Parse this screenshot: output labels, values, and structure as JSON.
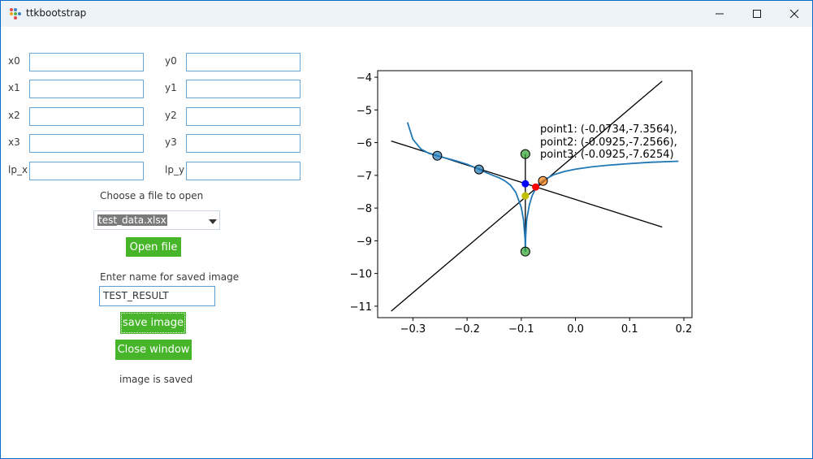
{
  "window": {
    "title": "ttkbootstrap",
    "controls": [
      "minimize",
      "maximize",
      "close"
    ]
  },
  "form": {
    "fields": [
      {
        "label": "x0",
        "value": ""
      },
      {
        "label": "y0",
        "value": ""
      },
      {
        "label": "x1",
        "value": ""
      },
      {
        "label": "y1",
        "value": ""
      },
      {
        "label": "x2",
        "value": ""
      },
      {
        "label": "y2",
        "value": ""
      },
      {
        "label": "x3",
        "value": ""
      },
      {
        "label": "y3",
        "value": ""
      },
      {
        "label": "lp_x",
        "value": ""
      },
      {
        "label": "lp_y",
        "value": ""
      }
    ],
    "file_prompt": "Choose a file to open",
    "file_selected": "test_data.xlsx",
    "open_button": "Open file",
    "save_prompt": "Enter name for saved image",
    "save_name": "TEST_RESULT",
    "save_button": "save image",
    "close_button": "Close window",
    "status": "image is saved"
  },
  "colors": {
    "accent_green": "#47b52a",
    "curve": "#1f77b4",
    "line": "#000000",
    "marker_blue": "#1f77b4",
    "marker_orange": "#ff7f0e",
    "marker_green": "#2ca02c",
    "point_red": "#ff0000",
    "point_blue": "#0000ff",
    "point_yellow": "#bfbf00"
  },
  "chart_data": {
    "type": "line",
    "title": "",
    "xlabel": "",
    "ylabel": "",
    "xlim": [
      -0.365,
      0.215
    ],
    "ylim": [
      -11.35,
      -3.8
    ],
    "xticks": [
      -0.3,
      -0.2,
      -0.1,
      0.0,
      0.1,
      0.2
    ],
    "xtick_labels": [
      "−0.3",
      "−0.2",
      "−0.1",
      "0.0",
      "0.1",
      "0.2"
    ],
    "yticks": [
      -11,
      -10,
      -9,
      -8,
      -7,
      -6,
      -5,
      -4
    ],
    "ytick_labels": [
      "−11",
      "−10",
      "−9",
      "−8",
      "−7",
      "−6",
      "−5",
      "−4"
    ],
    "grid": false,
    "curves": [
      {
        "x": [
          -0.31,
          -0.3,
          -0.285,
          -0.27,
          -0.255,
          -0.24,
          -0.22,
          -0.2,
          -0.18,
          -0.16,
          -0.14,
          -0.13,
          -0.12,
          -0.11,
          -0.1,
          -0.096,
          -0.093,
          -0.0925
        ],
        "y": [
          -5.38,
          -5.9,
          -6.2,
          -6.33,
          -6.4,
          -6.47,
          -6.56,
          -6.66,
          -6.8,
          -6.95,
          -7.08,
          -7.17,
          -7.3,
          -7.52,
          -7.98,
          -8.35,
          -8.95,
          -9.33
        ]
      },
      {
        "x": [
          -0.0925,
          -0.092,
          -0.09,
          -0.085,
          -0.08,
          -0.07,
          -0.06,
          -0.04,
          -0.02,
          0.0,
          0.03,
          0.06,
          0.1,
          0.14,
          0.19
        ],
        "y": [
          -9.33,
          -8.9,
          -8.35,
          -7.9,
          -7.62,
          -7.3,
          -7.16,
          -6.98,
          -6.88,
          -6.81,
          -6.74,
          -6.69,
          -6.64,
          -6.6,
          -6.57
        ]
      }
    ],
    "lines": [
      {
        "x": [
          -0.34,
          0.16
        ],
        "y": [
          -5.95,
          -8.58
        ]
      },
      {
        "x": [
          -0.34,
          0.16
        ],
        "y": [
          -11.15,
          -4.12
        ]
      },
      {
        "x": [
          -0.0925,
          -0.0925
        ],
        "y": [
          -6.35,
          -9.33
        ]
      }
    ],
    "markers": [
      {
        "x": -0.255,
        "y": -6.4,
        "color": "#1f77b4"
      },
      {
        "x": -0.178,
        "y": -6.82,
        "color": "#1f77b4"
      },
      {
        "x": -0.06,
        "y": -7.17,
        "color": "#ff7f0e"
      },
      {
        "x": -0.0925,
        "y": -6.35,
        "color": "#2ca02c"
      },
      {
        "x": -0.0925,
        "y": -9.33,
        "color": "#2ca02c"
      }
    ],
    "points": [
      {
        "x": -0.0734,
        "y": -7.3564,
        "color": "#ff0000"
      },
      {
        "x": -0.0925,
        "y": -7.2566,
        "color": "#0000ff"
      },
      {
        "x": -0.0925,
        "y": -7.6254,
        "color": "#bfbf00"
      }
    ],
    "annotations": [
      "point1: (-0.0734,-7.3564),",
      "point2: (-0.0925,-7.2566),",
      "point3: (-0.0925,-7.6254)"
    ]
  }
}
